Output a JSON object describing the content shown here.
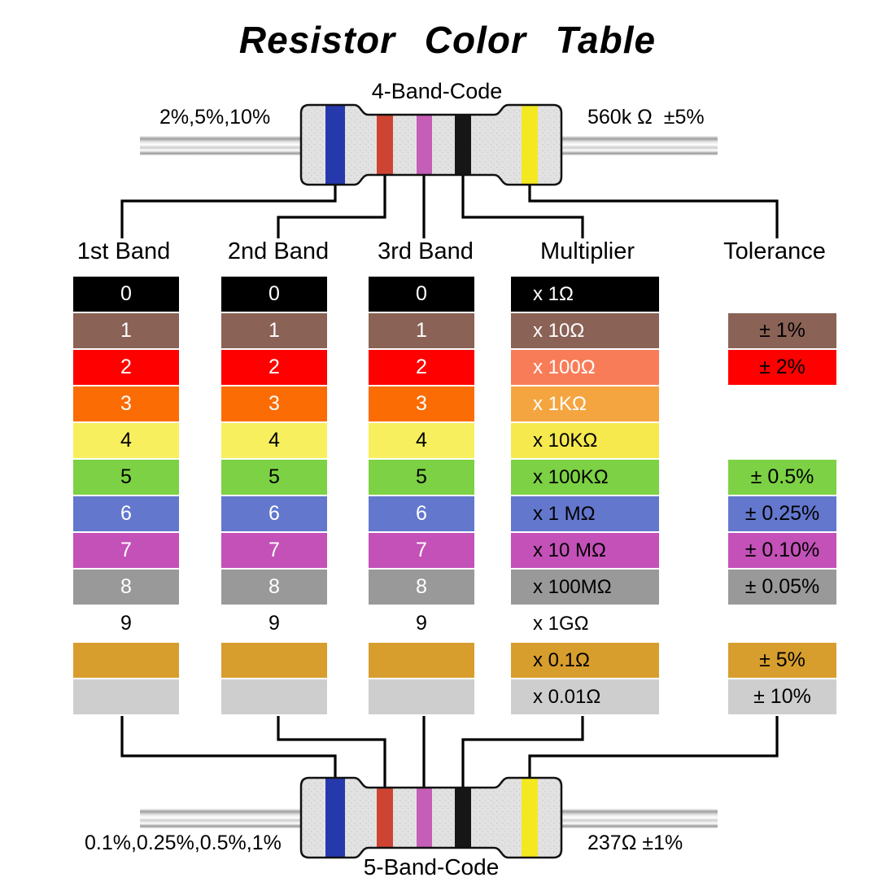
{
  "title": "Resistor Color Table",
  "top_resistor": {
    "label": "4-Band-Code",
    "left_note": "2%,5%,10%",
    "right_note": "560k Ω  ±5%",
    "band_colors": [
      "blue",
      "red",
      "violet",
      "black",
      "yellow"
    ]
  },
  "bottom_resistor": {
    "label": "5-Band-Code",
    "left_note": "0.1%,0.25%,0.5%,1%",
    "right_note": "237Ω ±1%",
    "band_colors": [
      "blue",
      "red",
      "violet",
      "black",
      "yellow"
    ]
  },
  "columns": [
    "1st Band",
    "2nd Band",
    "3rd Band",
    "Multiplier",
    "Tolerance"
  ],
  "resistor": {
    "body_color": "#e2e2e2",
    "outline_color": "#111111",
    "bands": {
      "blue": "#2639ac",
      "red": "#ce4433",
      "violet": "#c45eb6",
      "black": "#161616",
      "yellow": "#f4e920"
    }
  },
  "connector_color": "#000000",
  "table": {
    "rows": [
      {
        "color_name": "black",
        "digit": "0",
        "band_bg": "#000000",
        "band_fg": "#ffffff",
        "multiplier": "x 1Ω",
        "mult_bg": "#000000",
        "mult_fg": "#ffffff",
        "tolerance": null,
        "tol_bg": null,
        "tol_fg": null
      },
      {
        "color_name": "brown",
        "digit": "1",
        "band_bg": "#8a6256",
        "band_fg": "#ffffff",
        "multiplier": "x 10Ω",
        "mult_bg": "#8a6256",
        "mult_fg": "#ffffff",
        "tolerance": "± 1%",
        "tol_bg": "#8a6256",
        "tol_fg": "#000000"
      },
      {
        "color_name": "red",
        "digit": "2",
        "band_bg": "#fe0000",
        "band_fg": "#ffffff",
        "multiplier": "x 100Ω",
        "mult_bg": "#f97c59",
        "mult_fg": "#ffffff",
        "tolerance": "± 2%",
        "tol_bg": "#fe0000",
        "tol_fg": "#000000"
      },
      {
        "color_name": "orange",
        "digit": "3",
        "band_bg": "#fb6c04",
        "band_fg": "#ffffff",
        "multiplier": "x 1KΩ",
        "mult_bg": "#f5a540",
        "mult_fg": "#ffffff",
        "tolerance": null,
        "tol_bg": null,
        "tol_fg": null
      },
      {
        "color_name": "yellow",
        "digit": "4",
        "band_bg": "#f7ef5e",
        "band_fg": "#000000",
        "multiplier": "x 10KΩ",
        "mult_bg": "#f5e94e",
        "mult_fg": "#000000",
        "tolerance": null,
        "tol_bg": null,
        "tol_fg": null
      },
      {
        "color_name": "green",
        "digit": "5",
        "band_bg": "#7cd144",
        "band_fg": "#000000",
        "multiplier": "x 100KΩ",
        "mult_bg": "#7cd144",
        "mult_fg": "#000000",
        "tolerance": "± 0.5%",
        "tol_bg": "#7cd144",
        "tol_fg": "#000000"
      },
      {
        "color_name": "blue",
        "digit": "6",
        "band_bg": "#6377cd",
        "band_fg": "#ffffff",
        "multiplier": "x 1 MΩ",
        "mult_bg": "#6377cd",
        "mult_fg": "#000000",
        "tolerance": "± 0.25%",
        "tol_bg": "#6377cd",
        "tol_fg": "#000000"
      },
      {
        "color_name": "violet",
        "digit": "7",
        "band_bg": "#c351b8",
        "band_fg": "#ffffff",
        "multiplier": "x 10 MΩ",
        "mult_bg": "#c351b8",
        "mult_fg": "#000000",
        "tolerance": "± 0.10%",
        "tol_bg": "#c351b8",
        "tol_fg": "#000000"
      },
      {
        "color_name": "gray",
        "digit": "8",
        "band_bg": "#999999",
        "band_fg": "#ffffff",
        "multiplier": "x 100MΩ",
        "mult_bg": "#999999",
        "mult_fg": "#000000",
        "tolerance": "± 0.05%",
        "tol_bg": "#999999",
        "tol_fg": "#000000"
      },
      {
        "color_name": "white",
        "digit": "9",
        "band_bg": "#ffffff",
        "band_fg": "#000000",
        "multiplier": "x 1GΩ",
        "mult_bg": "#ffffff",
        "mult_fg": "#000000",
        "tolerance": null,
        "tol_bg": null,
        "tol_fg": null
      },
      {
        "color_name": "gold",
        "digit": "",
        "band_bg": "#d79e2e",
        "band_fg": "#000000",
        "multiplier": "x 0.1Ω",
        "mult_bg": "#d79e2e",
        "mult_fg": "#000000",
        "tolerance": "± 5%",
        "tol_bg": "#d79e2e",
        "tol_fg": "#000000"
      },
      {
        "color_name": "silver",
        "digit": "",
        "band_bg": "#cecece",
        "band_fg": "#000000",
        "multiplier": "x 0.01Ω",
        "mult_bg": "#cecece",
        "mult_fg": "#000000",
        "tolerance": "± 10%",
        "tol_bg": "#cecece",
        "tol_fg": "#000000"
      }
    ]
  }
}
